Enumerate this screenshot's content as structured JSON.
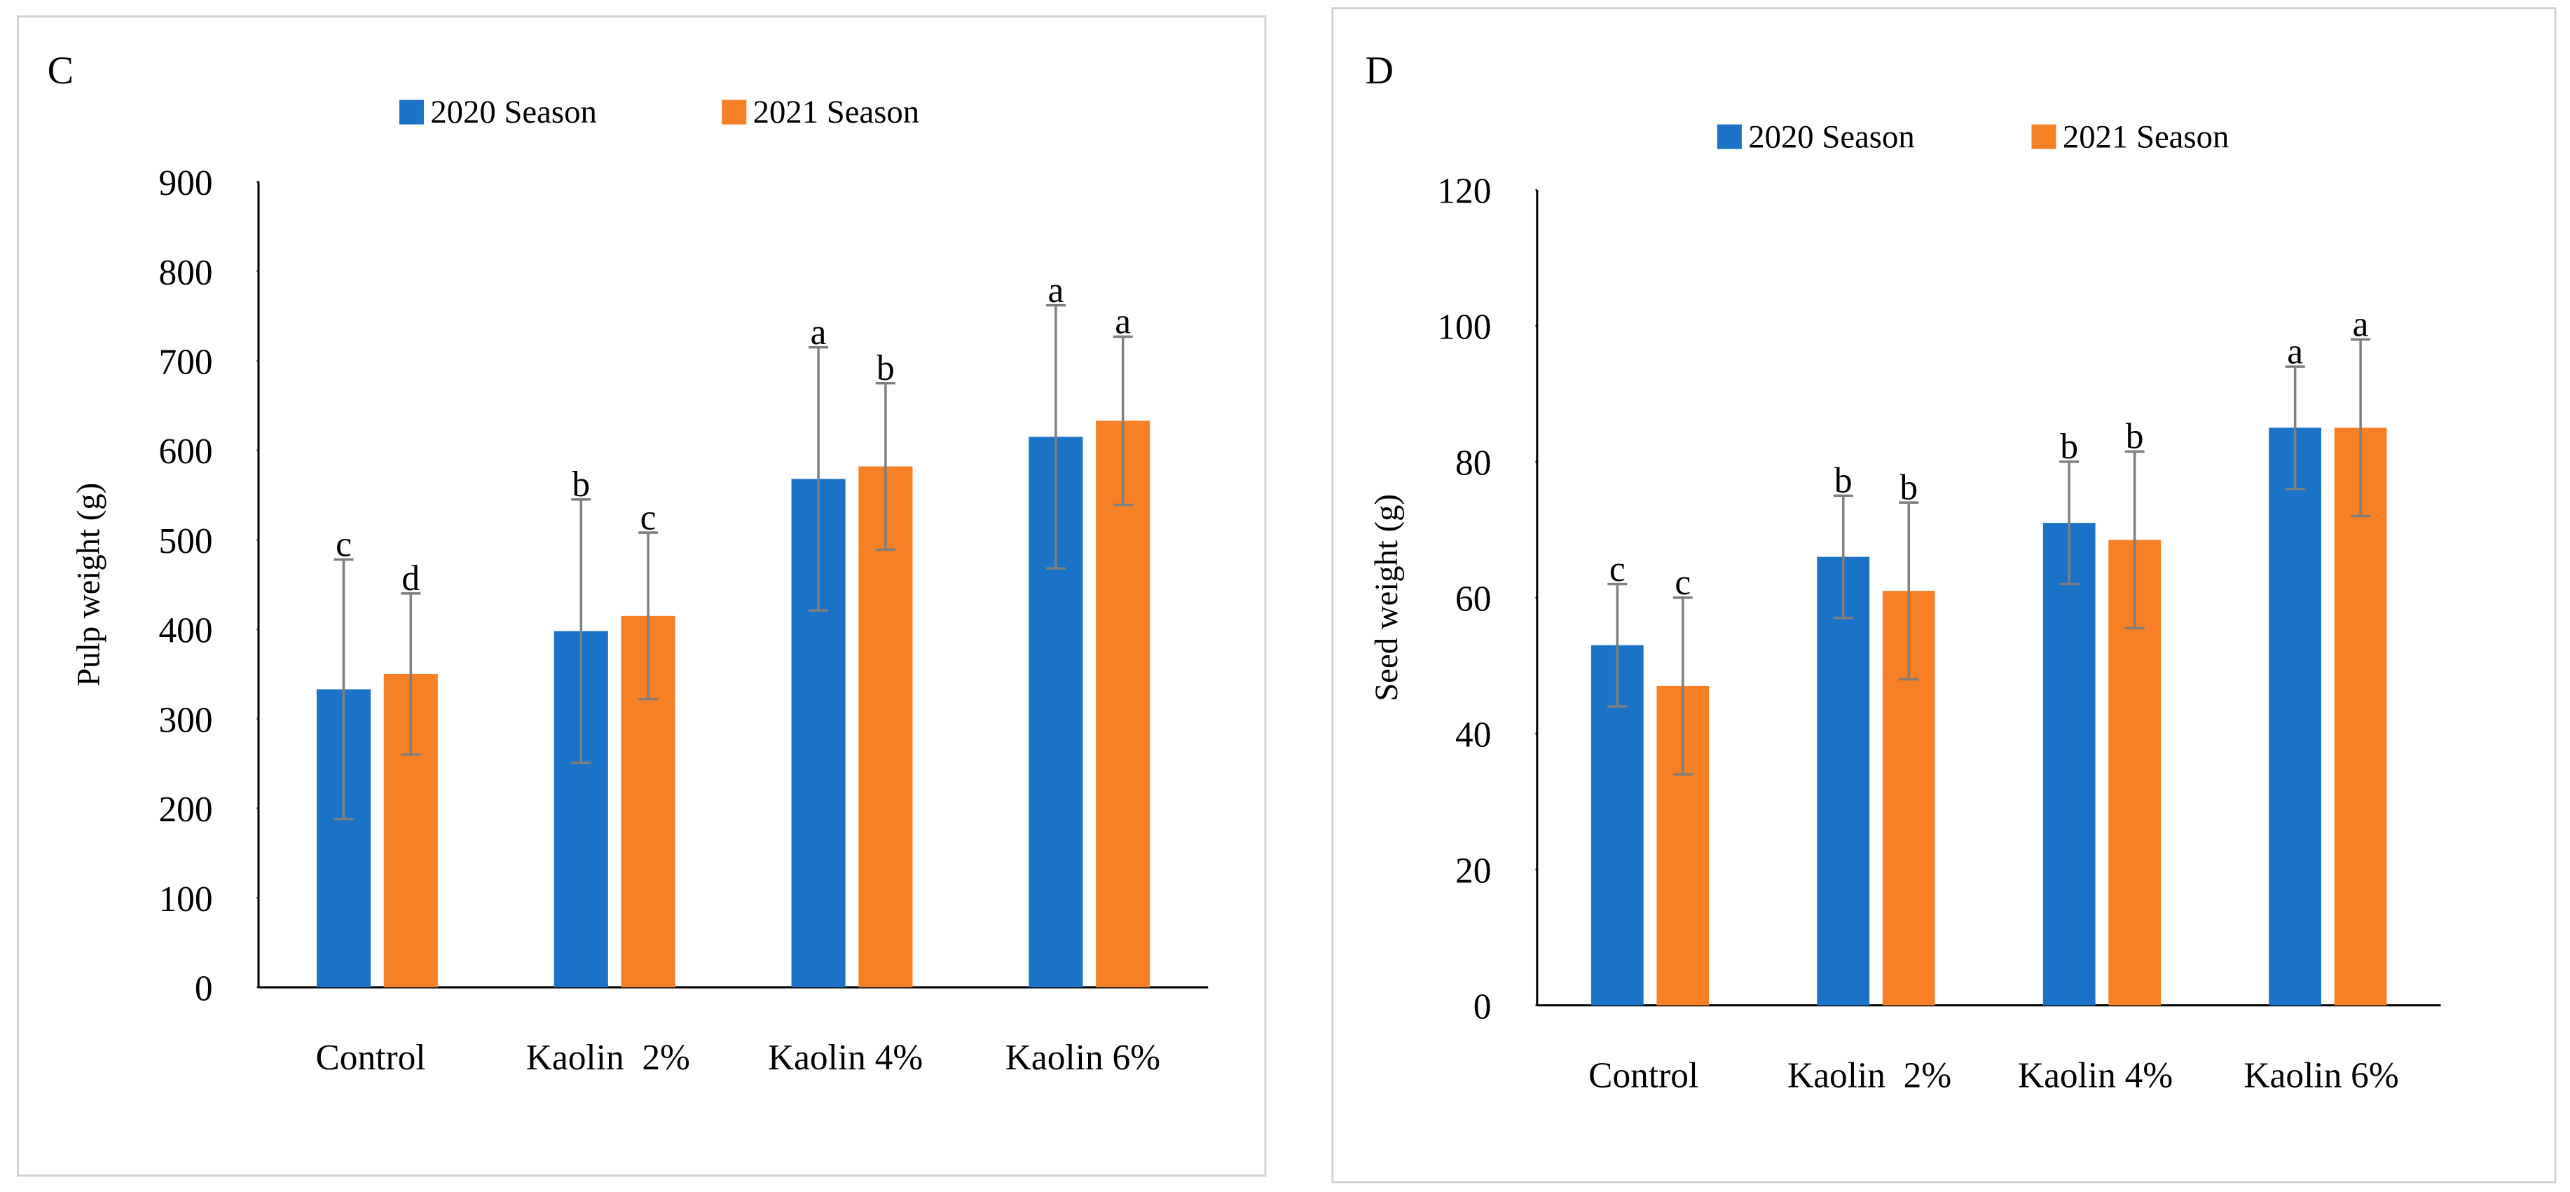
{
  "chart_data": [
    {
      "type": "bar",
      "panel_label": "C",
      "ylabel": "Pulp weight (g)",
      "categories": [
        "Control",
        "Kaolin  2%",
        "Kaolin 4%",
        "Kaolin 6%"
      ],
      "series": [
        {
          "name": "2020 Season",
          "color": "#1b73c8",
          "values": [
            333,
            398,
            568,
            615
          ],
          "errors": [
            145,
            147,
            147,
            147
          ],
          "letters": [
            "c",
            "b",
            "a",
            "a"
          ]
        },
        {
          "name": "2021 Season",
          "color": "#f58025",
          "values": [
            350,
            415,
            582,
            633
          ],
          "errors": [
            90,
            93,
            93,
            94
          ],
          "letters": [
            "d",
            "c",
            "b",
            "a"
          ]
        }
      ],
      "ylim": [
        0,
        900
      ],
      "yticks": [
        0,
        100,
        200,
        300,
        400,
        500,
        600,
        700,
        800,
        900
      ],
      "legend": "top"
    },
    {
      "type": "bar",
      "panel_label": "D",
      "ylabel": "Seed weight (g)",
      "categories": [
        "Control",
        "Kaolin  2%",
        "Kaolin 4%",
        "Kaolin 6%"
      ],
      "series": [
        {
          "name": "2020 Season",
          "color": "#1b73c8",
          "values": [
            53,
            66,
            71,
            85
          ],
          "errors": [
            9,
            9,
            9,
            9
          ],
          "letters": [
            "c",
            "b",
            "b",
            "a"
          ]
        },
        {
          "name": "2021 Season",
          "color": "#f58025",
          "values": [
            47,
            61,
            68.5,
            85
          ],
          "errors": [
            13,
            13,
            13,
            13
          ],
          "letters": [
            "c",
            "b",
            "b",
            "a"
          ]
        }
      ],
      "ylim": [
        0,
        120
      ],
      "yticks": [
        0,
        20,
        40,
        60,
        80,
        100,
        120
      ],
      "legend": "top"
    }
  ]
}
